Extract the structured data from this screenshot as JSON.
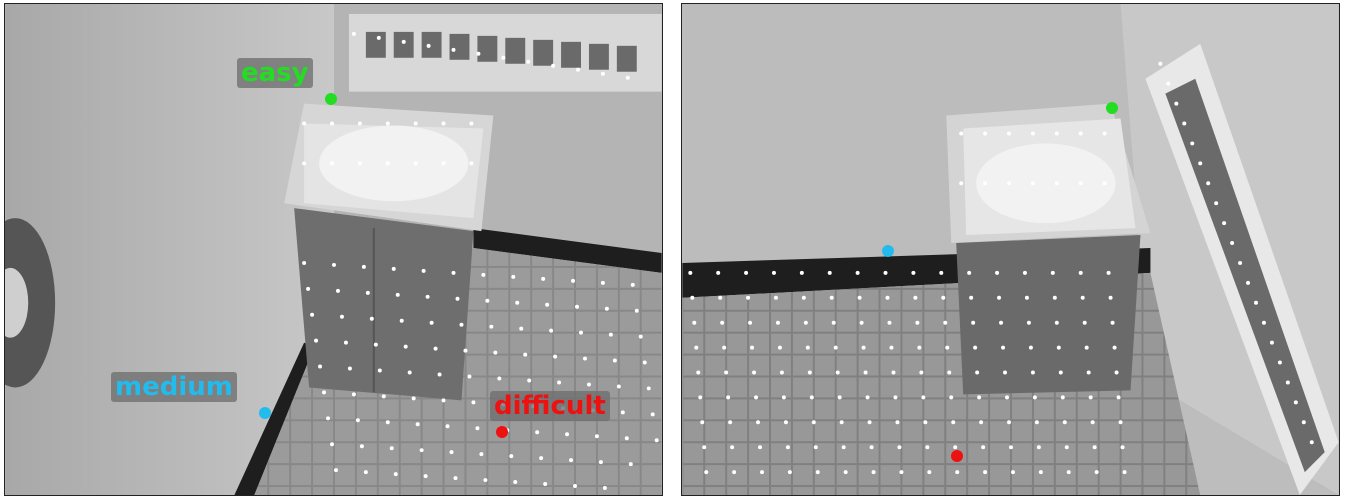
{
  "colors": {
    "easy": "#22dd22",
    "medium": "#22bbee",
    "difficult": "#ee1111",
    "grid_point": "#ffffff"
  },
  "left_view": {
    "labels": {
      "easy": "easy",
      "medium": "medium",
      "difficult": "difficult"
    }
  },
  "right_view": {}
}
